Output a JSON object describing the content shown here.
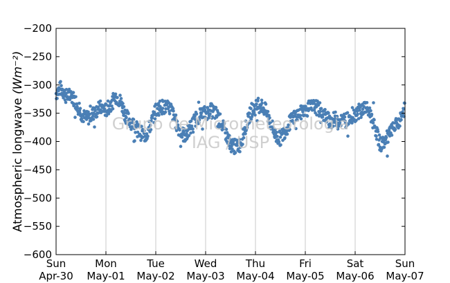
{
  "chart_data": {
    "type": "scatter",
    "ylabel": "Atmospheric longwave",
    "ylabel_unit": "(Wm⁻²)",
    "ylim": [
      -600,
      -200
    ],
    "yticks": [
      -200,
      -250,
      -300,
      -350,
      -400,
      -450,
      -500,
      -550,
      -600
    ],
    "xlim": [
      "2017-04-30",
      "2017-05-07"
    ],
    "xticks": [
      {
        "day": "Sun",
        "date": "Apr-30"
      },
      {
        "day": "Mon",
        "date": "May-01"
      },
      {
        "day": "Tue",
        "date": "May-02"
      },
      {
        "day": "Wed",
        "date": "May-03"
      },
      {
        "day": "Thu",
        "date": "May-04"
      },
      {
        "day": "Fri",
        "date": "May-05"
      },
      {
        "day": "Sat",
        "date": "May-06"
      },
      {
        "day": "Sun",
        "date": "May-07"
      }
    ],
    "grid": "vertical",
    "marker_color": "#4a7fb5",
    "series": [
      {
        "x_day_offsets": [
          0.0,
          0.1,
          0.2,
          0.3,
          0.4,
          0.5,
          0.6,
          0.7,
          0.8,
          0.9,
          1.0,
          1.1,
          1.2,
          1.3,
          1.4,
          1.5,
          1.6,
          1.7,
          1.8,
          1.9,
          2.0,
          2.1,
          2.2,
          2.3,
          2.4,
          2.5,
          2.6,
          2.7,
          2.8,
          2.9,
          3.0,
          3.1,
          3.2,
          3.3,
          3.4,
          3.5,
          3.6,
          3.7,
          3.8,
          3.9,
          4.0,
          4.1,
          4.2,
          4.3,
          4.4,
          4.5,
          4.6,
          4.7,
          4.8,
          4.9,
          5.0,
          5.1,
          5.2,
          5.3,
          5.4,
          5.5,
          5.6,
          5.7,
          5.8,
          5.9,
          6.0,
          6.1,
          6.2,
          6.3,
          6.4,
          6.5,
          6.6,
          6.7,
          6.8,
          6.9,
          7.0
        ],
        "y": [
          -315,
          -305,
          -320,
          -318,
          -330,
          -350,
          -360,
          -355,
          -345,
          -340,
          -345,
          -335,
          -320,
          -330,
          -355,
          -365,
          -375,
          -385,
          -390,
          -370,
          -345,
          -338,
          -340,
          -342,
          -365,
          -385,
          -390,
          -375,
          -360,
          -352,
          -350,
          -345,
          -350,
          -365,
          -385,
          -405,
          -410,
          -405,
          -375,
          -350,
          -340,
          -335,
          -345,
          -365,
          -390,
          -395,
          -380,
          -365,
          -355,
          -350,
          -345,
          -340,
          -338,
          -345,
          -355,
          -365,
          -360,
          -362,
          -363,
          -358,
          -352,
          -345,
          -340,
          -350,
          -375,
          -405,
          -400,
          -385,
          -375,
          -360,
          -340
        ]
      }
    ]
  },
  "watermark": {
    "line1": "Grupo de Micrometeorologia",
    "line2": "IAG / USP"
  }
}
